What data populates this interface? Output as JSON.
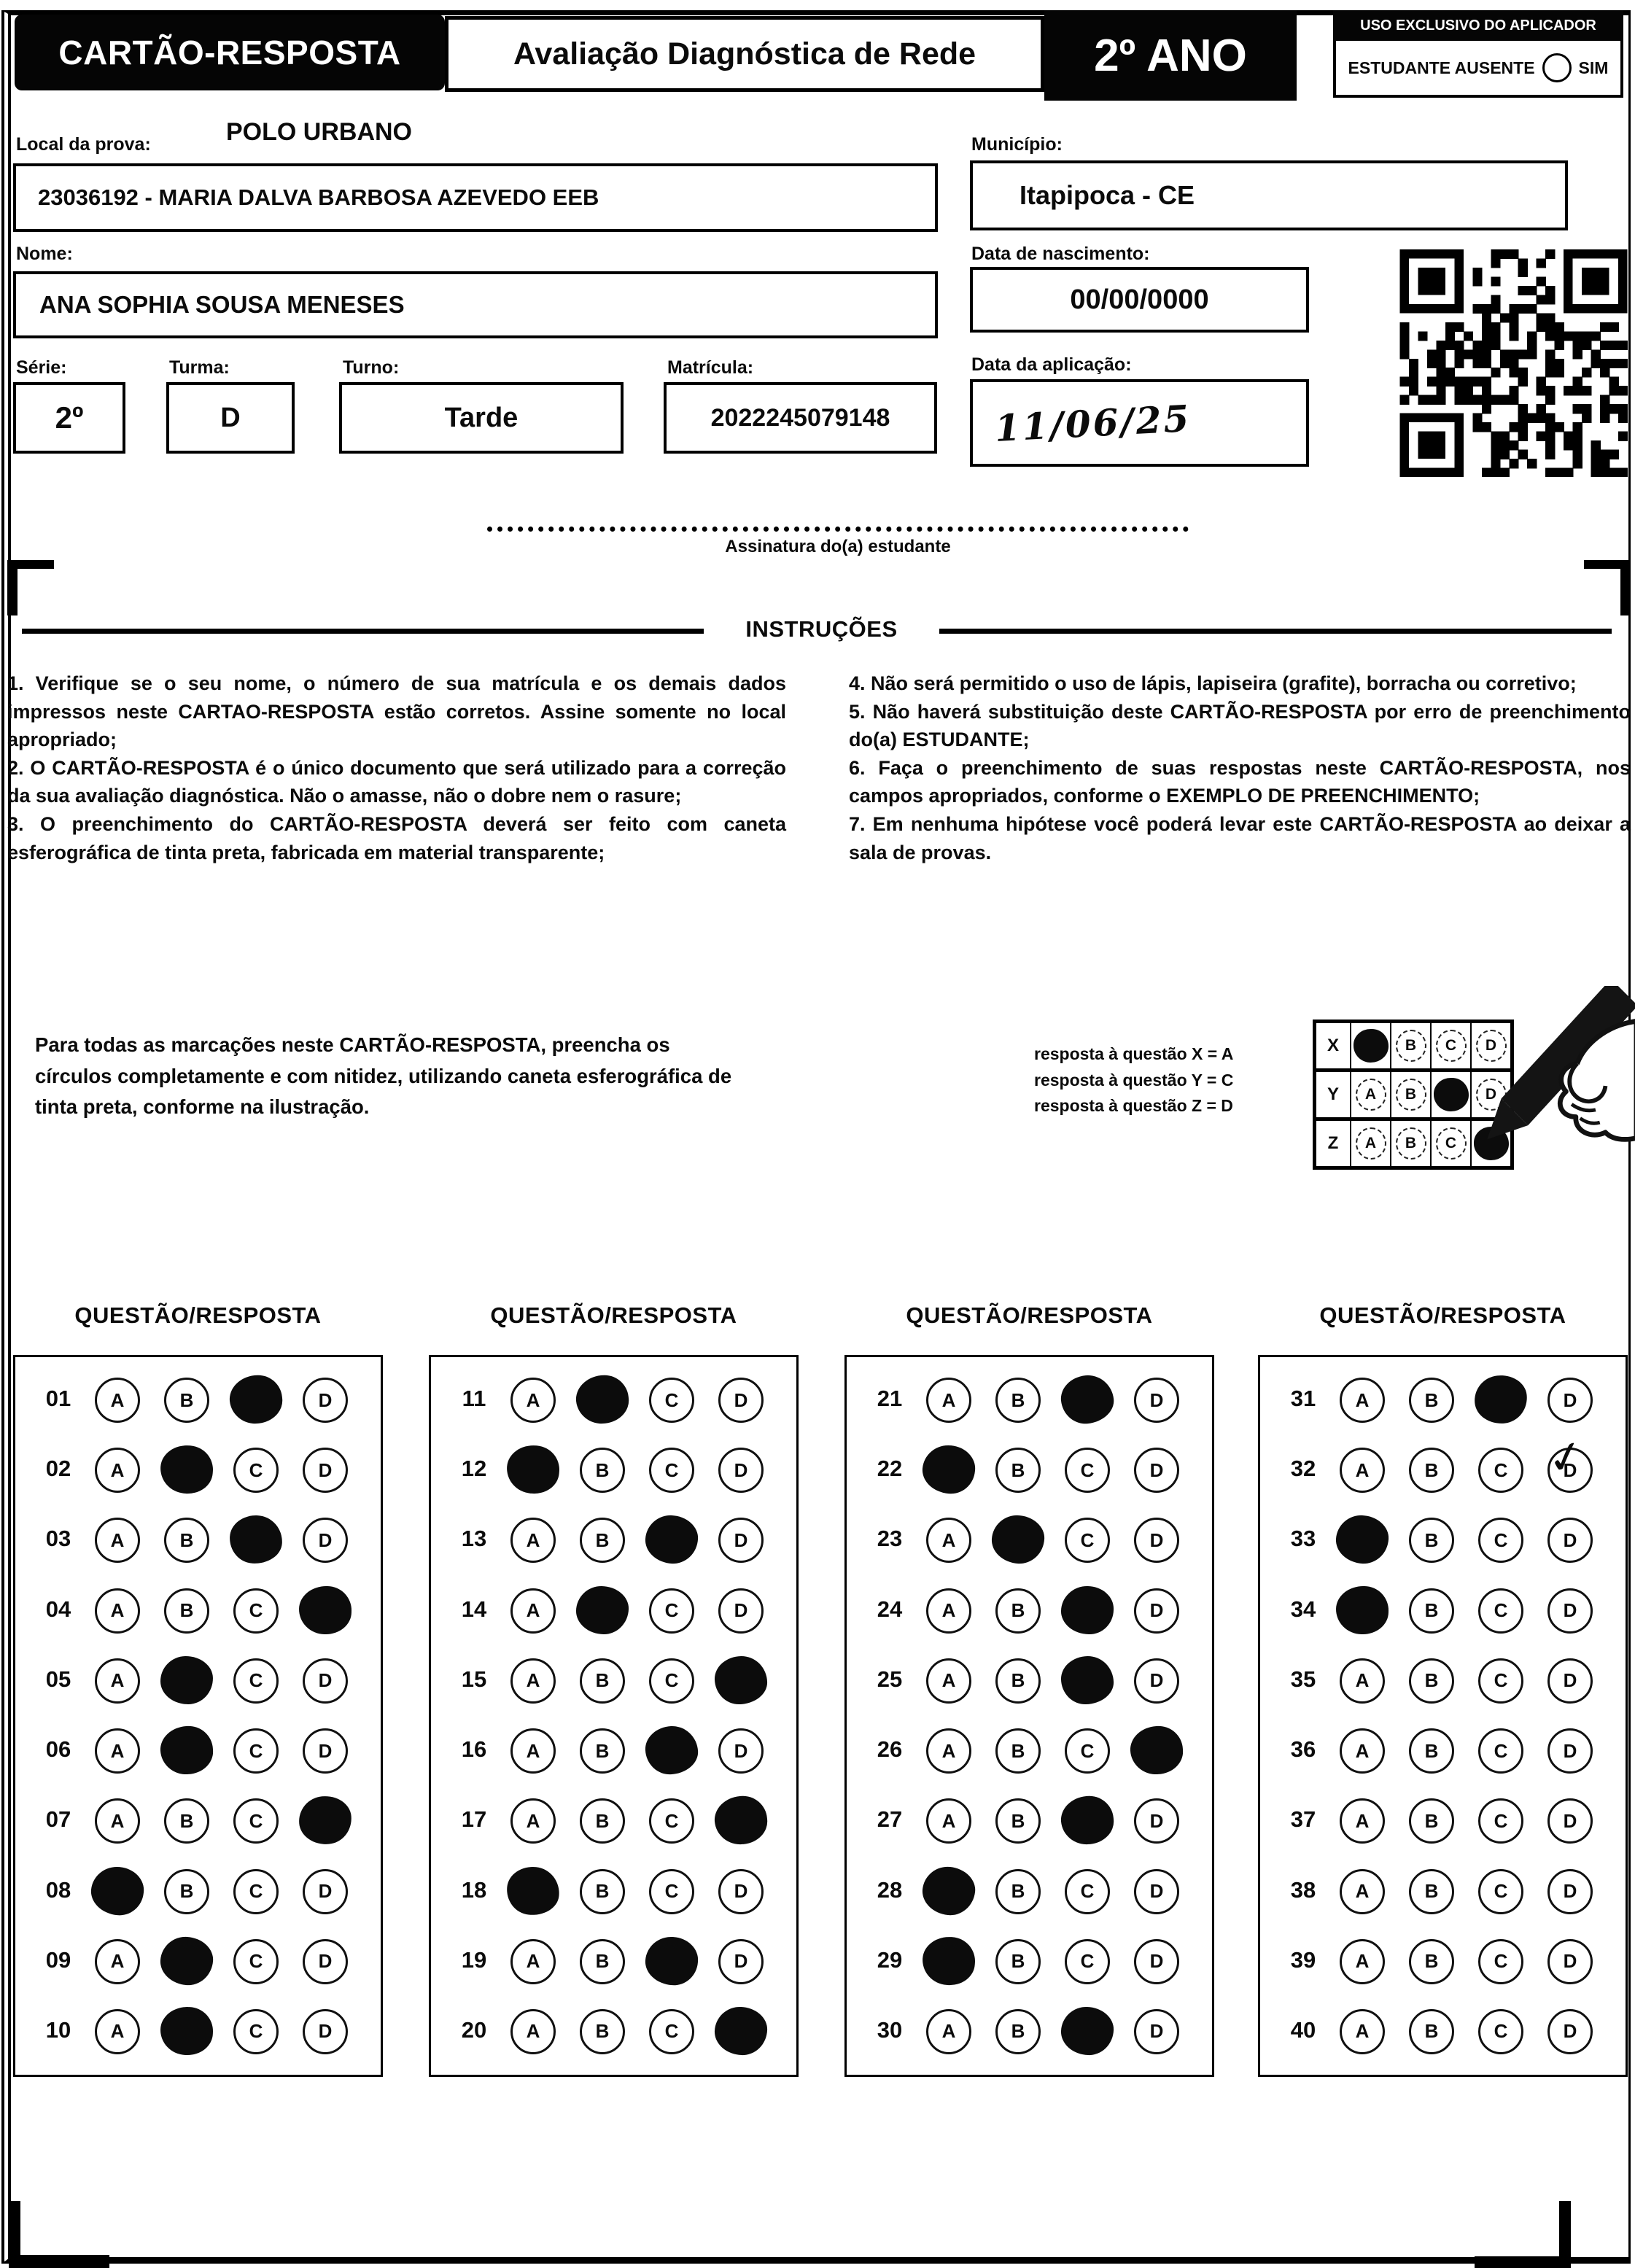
{
  "colors": {
    "ink": "#0b0b0b",
    "paper": "#ffffff"
  },
  "header": {
    "card_title": "CARTÃO-RESPOSTA",
    "assessment_title": "Avaliação Diagnóstica de Rede",
    "grade": "2º ANO",
    "applicator": {
      "title": "USO EXCLUSIVO DO APLICADOR",
      "absent_label": "ESTUDANTE AUSENTE",
      "yes_label": "SIM"
    }
  },
  "form": {
    "local_label": "Local da prova:",
    "local_value": "POLO URBANO",
    "school_value": "23036192 - MARIA DALVA BARBOSA AZEVEDO EEB",
    "municipio_label": "Município:",
    "municipio_value": "Itapipoca - CE",
    "nome_label": "Nome:",
    "nome_value": "ANA SOPHIA SOUSA MENESES",
    "nascimento_label": "Data de nascimento:",
    "nascimento_value": "00/00/0000",
    "serie_label": "Série:",
    "serie_value": "2º",
    "turma_label": "Turma:",
    "turma_value": "D",
    "turno_label": "Turno:",
    "turno_value": "Tarde",
    "matricula_label": "Matrícula:",
    "matricula_value": "2022245079148",
    "aplicacao_label": "Data da aplicação:",
    "aplicacao_value": "11/06/25"
  },
  "signature": {
    "label": "Assinatura do(a) estudante"
  },
  "instructions": {
    "title": "INSTRUÇÕES",
    "left_items": [
      "1. Verifique se o seu nome, o número de sua matrícula e os demais dados impressos neste CARTAO-RESPOSTA estão corretos. Assine somente no local apropriado;",
      "2. O CARTÃO-RESPOSTA é o único documento que será utilizado para a correção da sua avaliação diagnóstica. Não o amasse, não o dobre nem o rasure;",
      "3. O preenchimento do CARTÃO-RESPOSTA deverá ser feito com caneta esferográfica de tinta preta, fabricada em material transparente;"
    ],
    "right_items": [
      "4. Não será permitido o uso de lápis, lapiseira (grafite), borracha ou corretivo;",
      "5. Não haverá substituição deste CARTÃO-RESPOSTA por erro de preenchimento do(a) ESTUDANTE;",
      "6. Faça o preenchimento de suas respostas neste CARTÃO-RESPOSTA, nos campos apropriados, conforme o EXEMPLO DE PREENCHIMENTO;",
      "7. Em nenhuma hipótese você poderá levar este CARTÃO-RESPOSTA ao deixar a sala de provas."
    ]
  },
  "example": {
    "paragraph": "Para todas as marcações neste CARTÃO-RESPOSTA, preencha os\ncírculos completamente e com nitidez, utilizando caneta esferográfica de\ntinta preta, conforme na ilustração.",
    "legend_lines": [
      "resposta à questão X = A",
      "resposta à questão Y = C",
      "resposta à questão Z = D"
    ],
    "options": [
      "A",
      "B",
      "C",
      "D"
    ],
    "rows": [
      {
        "label": "X",
        "filled": "A"
      },
      {
        "label": "Y",
        "filled": "C"
      },
      {
        "label": "Z",
        "filled": "D"
      }
    ]
  },
  "answers": {
    "section_header": "QUESTÃO/RESPOSTA",
    "options": [
      "A",
      "B",
      "C",
      "D"
    ],
    "columns": [
      {
        "items": [
          {
            "q": "01",
            "marked": "C"
          },
          {
            "q": "02",
            "marked": "B"
          },
          {
            "q": "03",
            "marked": "C"
          },
          {
            "q": "04",
            "marked": "D"
          },
          {
            "q": "05",
            "marked": "B"
          },
          {
            "q": "06",
            "marked": "B"
          },
          {
            "q": "07",
            "marked": "D"
          },
          {
            "q": "08",
            "marked": "A"
          },
          {
            "q": "09",
            "marked": "B"
          },
          {
            "q": "10",
            "marked": "B"
          }
        ]
      },
      {
        "items": [
          {
            "q": "11",
            "marked": "B"
          },
          {
            "q": "12",
            "marked": "A"
          },
          {
            "q": "13",
            "marked": "C"
          },
          {
            "q": "14",
            "marked": "B"
          },
          {
            "q": "15",
            "marked": "D"
          },
          {
            "q": "16",
            "marked": "C"
          },
          {
            "q": "17",
            "marked": "D"
          },
          {
            "q": "18",
            "marked": "A"
          },
          {
            "q": "19",
            "marked": "C"
          },
          {
            "q": "20",
            "marked": "D"
          }
        ]
      },
      {
        "items": [
          {
            "q": "21",
            "marked": "C"
          },
          {
            "q": "22",
            "marked": "A"
          },
          {
            "q": "23",
            "marked": "B"
          },
          {
            "q": "24",
            "marked": "C"
          },
          {
            "q": "25",
            "marked": "C"
          },
          {
            "q": "26",
            "marked": "D"
          },
          {
            "q": "27",
            "marked": "C"
          },
          {
            "q": "28",
            "marked": "A"
          },
          {
            "q": "29",
            "marked": "A"
          },
          {
            "q": "30",
            "marked": "C"
          }
        ]
      },
      {
        "items": [
          {
            "q": "31",
            "marked": "C"
          },
          {
            "q": "32",
            "marked": null,
            "check_on": "D"
          },
          {
            "q": "33",
            "marked": "A"
          },
          {
            "q": "34",
            "marked": "A"
          },
          {
            "q": "35",
            "marked": null
          },
          {
            "q": "36",
            "marked": null
          },
          {
            "q": "37",
            "marked": null
          },
          {
            "q": "38",
            "marked": null
          },
          {
            "q": "39",
            "marked": null
          },
          {
            "q": "40",
            "marked": null
          }
        ]
      }
    ]
  }
}
